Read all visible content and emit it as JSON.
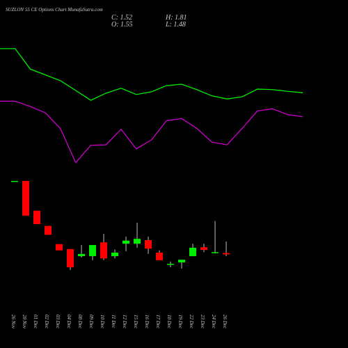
{
  "chart_data": [
    {
      "type": "candlestick",
      "title": "SUZLON 55 CE Options Chart MunafaSutra.com",
      "annotations": [
        "C: 1.52",
        "H: 1.81",
        "O: 1.55",
        "L: 1.48"
      ],
      "categories": [
        "26 Nov",
        "28 Nov",
        "01 Dec",
        "02 Dec",
        "03 Dec",
        "04 Dec",
        "08 Dec",
        "09 Dec",
        "10 Dec",
        "11 Dec",
        "12 Dec",
        "15 Dec",
        "16 Dec",
        "17 Dec",
        "18 Dec",
        "19 Dec",
        "22 Dec",
        "23 Dec",
        "24 Dec",
        "26 Dec"
      ],
      "open": [
        3.17,
        3.17,
        2.5,
        2.16,
        1.75,
        1.64,
        1.48,
        1.48,
        1.79,
        1.48,
        1.76,
        1.76,
        1.84,
        1.56,
        1.3,
        1.34,
        1.48,
        1.68,
        1.56,
        1.55
      ],
      "high": [
        3.17,
        3.17,
        2.5,
        2.16,
        1.75,
        1.64,
        1.73,
        1.73,
        1.98,
        1.63,
        1.92,
        2.23,
        1.92,
        1.61,
        1.36,
        1.4,
        1.76,
        1.76,
        2.27,
        1.81
      ],
      "low": [
        3.17,
        2.39,
        2.2,
        1.96,
        1.61,
        1.17,
        1.45,
        1.39,
        1.39,
        1.43,
        1.59,
        1.67,
        1.53,
        1.39,
        1.23,
        1.2,
        1.48,
        1.57,
        1.54,
        1.48
      ],
      "close": [
        3.17,
        2.39,
        2.2,
        1.96,
        1.61,
        1.23,
        1.53,
        1.73,
        1.43,
        1.56,
        1.83,
        1.87,
        1.65,
        1.39,
        1.31,
        1.4,
        1.67,
        1.62,
        1.57,
        1.52
      ],
      "up_color": "#00ee00",
      "down_color": "#ff0000",
      "ylim": [
        0,
        7
      ]
    },
    {
      "type": "line",
      "series": [
        {
          "color": "#00ee00",
          "values": [
            6.14,
            6.14,
            5.68,
            5.55,
            5.42,
            5.2,
            4.98,
            5.14,
            5.25,
            5.11,
            5.17,
            5.31,
            5.34,
            5.22,
            5.08,
            5.01,
            5.06,
            5.23,
            5.22,
            5.18,
            5.15
          ]
        },
        {
          "color": "#cc00cc",
          "values": [
            4.96,
            4.96,
            4.84,
            4.7,
            4.34,
            3.58,
            3.97,
            3.98,
            4.33,
            3.89,
            4.09,
            4.52,
            4.57,
            4.35,
            4.04,
            3.98,
            4.35,
            4.74,
            4.79,
            4.66,
            4.61
          ]
        }
      ],
      "ylim": [
        0,
        7
      ]
    }
  ]
}
